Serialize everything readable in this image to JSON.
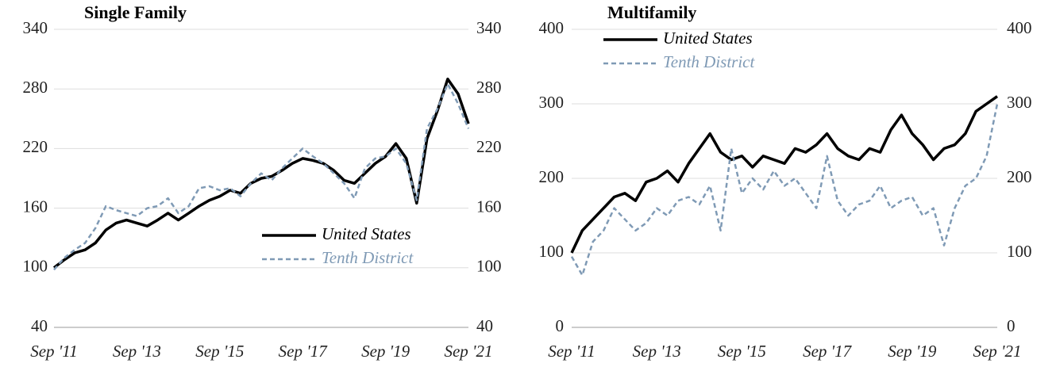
{
  "chart_data": [
    {
      "type": "line",
      "title": "Single Family",
      "categories": [
        "Sep '11",
        null,
        null,
        null,
        null,
        null,
        null,
        null,
        "Sep '13",
        null,
        null,
        null,
        null,
        null,
        null,
        null,
        "Sep '15",
        null,
        null,
        null,
        null,
        null,
        null,
        null,
        "Sep '17",
        null,
        null,
        null,
        null,
        null,
        null,
        null,
        "Sep '19",
        null,
        null,
        null,
        null,
        null,
        null,
        null,
        "Sep '21"
      ],
      "ylim": [
        40,
        340
      ],
      "yticks": [
        40,
        100,
        160,
        220,
        280,
        340
      ],
      "grid": true,
      "legend": "lower right",
      "series": [
        {
          "name": "United States",
          "color": "#000000",
          "dashed": false,
          "values": [
            100,
            108,
            115,
            118,
            125,
            138,
            145,
            148,
            145,
            142,
            148,
            155,
            148,
            155,
            162,
            168,
            172,
            178,
            175,
            185,
            190,
            192,
            198,
            205,
            210,
            208,
            205,
            198,
            188,
            185,
            195,
            205,
            212,
            225,
            210,
            165,
            230,
            258,
            290,
            275,
            245
          ]
        },
        {
          "name": "Tenth District",
          "color": "#7f9ab5",
          "dashed": true,
          "values": [
            98,
            110,
            118,
            125,
            140,
            162,
            158,
            155,
            152,
            160,
            162,
            170,
            155,
            162,
            180,
            182,
            178,
            180,
            172,
            185,
            195,
            188,
            200,
            210,
            220,
            212,
            205,
            195,
            185,
            170,
            200,
            210,
            212,
            220,
            205,
            168,
            240,
            260,
            285,
            265,
            240
          ]
        }
      ]
    },
    {
      "type": "line",
      "title": "Multifamily",
      "categories": [
        "Sep '11",
        null,
        null,
        null,
        null,
        null,
        null,
        null,
        "Sep '13",
        null,
        null,
        null,
        null,
        null,
        null,
        null,
        "Sep '15",
        null,
        null,
        null,
        null,
        null,
        null,
        null,
        "Sep '17",
        null,
        null,
        null,
        null,
        null,
        null,
        null,
        "Sep '19",
        null,
        null,
        null,
        null,
        null,
        null,
        null,
        "Sep '21"
      ],
      "ylim": [
        0,
        400
      ],
      "yticks": [
        0,
        100,
        200,
        300,
        400
      ],
      "grid": true,
      "legend": "upper left",
      "series": [
        {
          "name": "United States",
          "color": "#000000",
          "dashed": false,
          "values": [
            100,
            130,
            145,
            160,
            175,
            180,
            170,
            195,
            200,
            210,
            195,
            220,
            240,
            260,
            235,
            225,
            230,
            215,
            230,
            225,
            220,
            240,
            235,
            245,
            260,
            240,
            230,
            225,
            240,
            235,
            265,
            285,
            260,
            245,
            225,
            240,
            245,
            260,
            290,
            300,
            310
          ]
        },
        {
          "name": "Tenth District",
          "color": "#7f9ab5",
          "dashed": true,
          "values": [
            95,
            70,
            115,
            130,
            160,
            145,
            130,
            140,
            160,
            150,
            170,
            175,
            165,
            190,
            130,
            240,
            180,
            200,
            185,
            210,
            190,
            200,
            180,
            160,
            230,
            170,
            150,
            165,
            170,
            190,
            160,
            170,
            175,
            150,
            160,
            110,
            160,
            190,
            200,
            230,
            300
          ]
        }
      ]
    }
  ]
}
